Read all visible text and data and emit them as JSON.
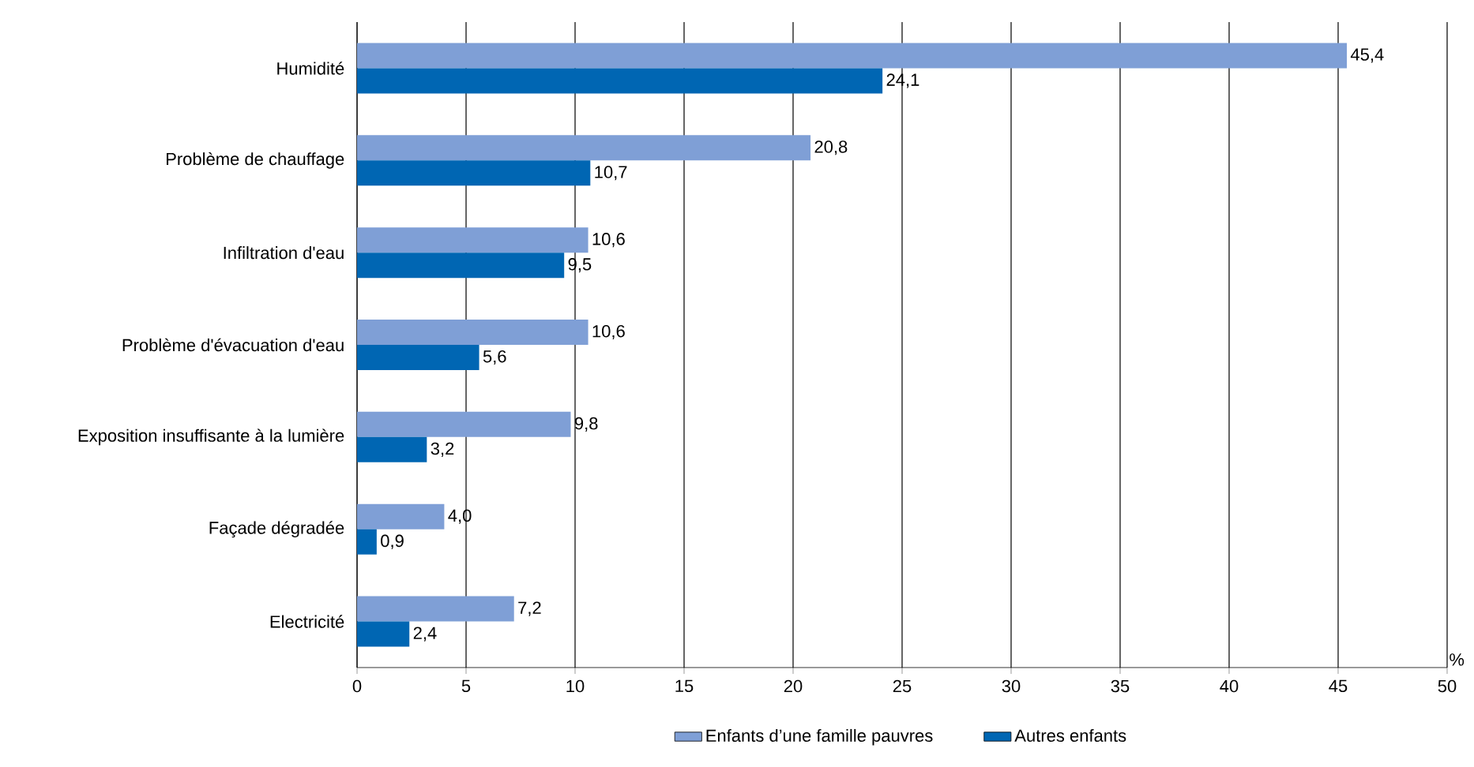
{
  "chart_data": {
    "type": "bar",
    "orientation": "horizontal",
    "xlabel": "%",
    "categories": [
      "Humidité",
      "Problème de chauffage",
      "Infiltration d'eau",
      "Problème d'évacuation d'eau",
      "Exposition insuffisante à la lumière",
      "Façade dégradée",
      "Electricité"
    ],
    "series": [
      {
        "name": "Enfants d’une famille pauvres",
        "color": "#7f9fd6",
        "values": [
          45.4,
          20.8,
          10.6,
          10.6,
          9.8,
          4.0,
          7.2
        ],
        "value_labels": [
          "45,4",
          "20,8",
          "10,6",
          "10,6",
          "9,8",
          "4,0",
          "7,2"
        ]
      },
      {
        "name": "Autres enfants",
        "color": "#0066b3",
        "values": [
          24.1,
          10.7,
          9.5,
          5.6,
          3.2,
          0.9,
          2.4
        ],
        "value_labels": [
          "24,1",
          "10,7",
          "9,5",
          "5,6",
          "3,2",
          "0,9",
          "2,4"
        ]
      }
    ],
    "xlim": [
      0,
      50
    ],
    "xticks": [
      0,
      5,
      10,
      15,
      20,
      25,
      30,
      35,
      40,
      45,
      50
    ],
    "grid": "x",
    "legend": "bottom"
  }
}
